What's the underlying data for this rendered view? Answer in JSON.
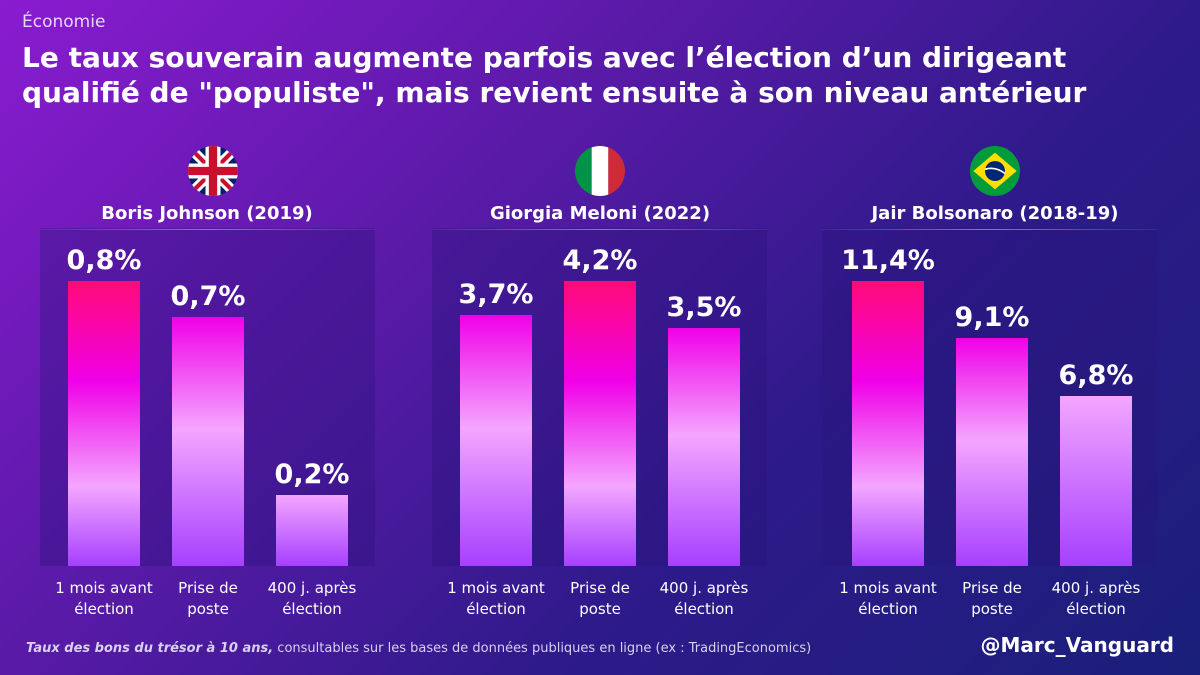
{
  "header": {
    "category": "Économie",
    "title": "Le taux souverain augmente parfois avec l’élection d’un dirigeant qualifié de \"populiste\", mais revient ensuite à son niveau antérieur"
  },
  "footer": {
    "source_bold": "Taux des bons du trésor à 10 ans,",
    "source_rest": " consultables sur les bases de données publiques en ligne (ex : TradingEconomics)",
    "handle": "@Marc_Vanguard"
  },
  "colors": {
    "hot_pink": "#ff0a78",
    "magenta": "#f000e8",
    "light_pink": "#f4a6ff",
    "violet": "#a640ff"
  },
  "chart_data": [
    {
      "type": "bar",
      "title": "Boris Johnson (2019)",
      "flag": "uk-flag-icon",
      "categories": [
        "1 mois avant élection",
        "Prise de poste",
        "400 j. après élection"
      ],
      "category_lines": [
        [
          "1 mois avant",
          "élection"
        ],
        [
          "Prise de",
          "poste"
        ],
        [
          "400 j. après",
          "élection"
        ]
      ],
      "values": [
        0.8,
        0.7,
        0.2
      ],
      "labels": [
        "0,8%",
        "0,7%",
        "0,2%"
      ],
      "unit": "%"
    },
    {
      "type": "bar",
      "title": "Giorgia Meloni (2022)",
      "flag": "italy-flag-icon",
      "categories": [
        "1 mois avant élection",
        "Prise de poste",
        "400 j. après élection"
      ],
      "category_lines": [
        [
          "1 mois avant",
          "élection"
        ],
        [
          "Prise de",
          "poste"
        ],
        [
          "400 j. après",
          "élection"
        ]
      ],
      "values": [
        3.7,
        4.2,
        3.5
      ],
      "labels": [
        "3,7%",
        "4,2%",
        "3,5%"
      ],
      "unit": "%"
    },
    {
      "type": "bar",
      "title": "Jair Bolsonaro (2018-19)",
      "flag": "brazil-flag-icon",
      "categories": [
        "1 mois avant élection",
        "Prise de poste",
        "400 j. après élection"
      ],
      "category_lines": [
        [
          "1 mois avant",
          "élection"
        ],
        [
          "Prise de",
          "poste"
        ],
        [
          "400 j. après",
          "élection"
        ]
      ],
      "values": [
        11.4,
        9.1,
        6.8
      ],
      "labels": [
        "11,4%",
        "9,1%",
        "6,8%"
      ],
      "unit": "%"
    }
  ]
}
